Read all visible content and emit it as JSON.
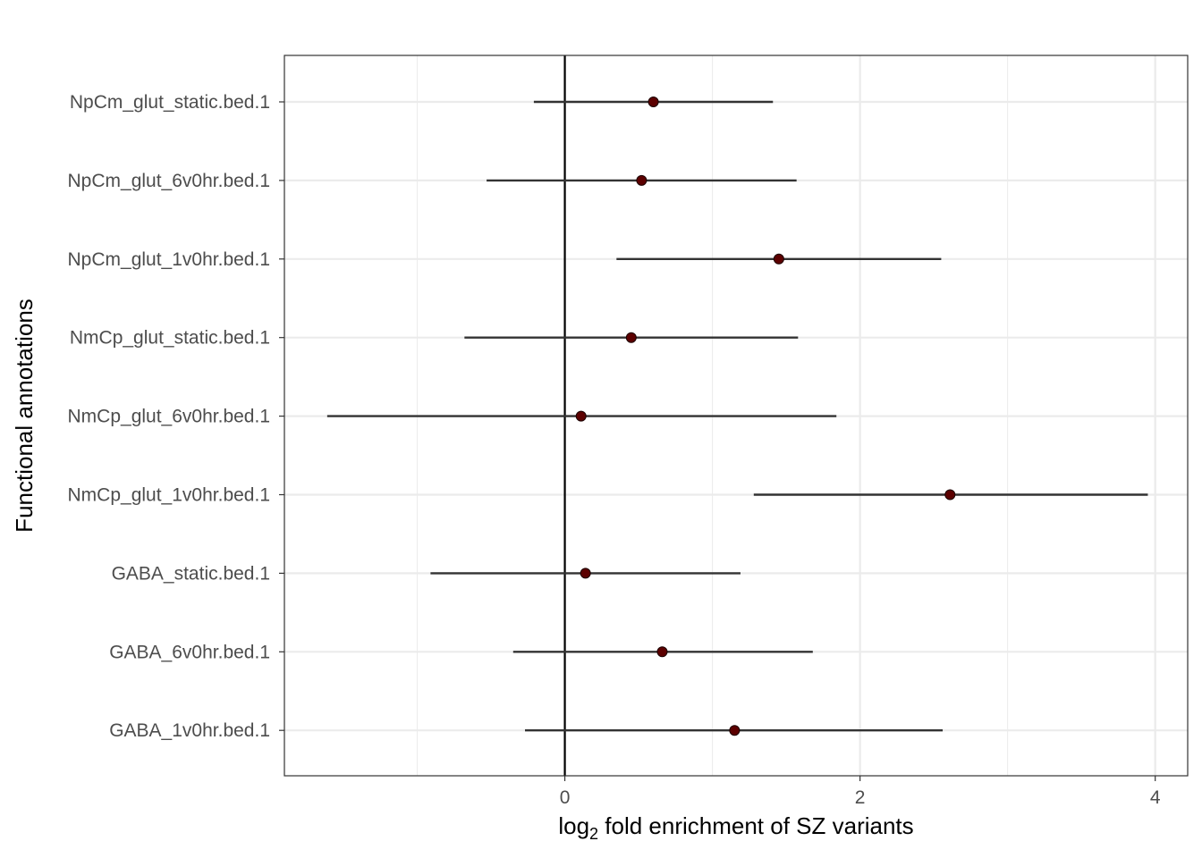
{
  "chart_data": {
    "type": "scatter",
    "orientation": "horizontal-forest",
    "xlabel_parts": {
      "prefix": "log",
      "subscript": "2",
      "rest": " fold enrichment of SZ variants"
    },
    "ylabel": "Functional annotations",
    "xlim": [
      -1.9,
      4.22
    ],
    "x_ticks": [
      0,
      2,
      4
    ],
    "x_tick_labels": [
      "0",
      "2",
      "4"
    ],
    "x_minor_ticks": [
      -1,
      1,
      3
    ],
    "reference_line_x": 0,
    "grid": true,
    "point_color": "#5c0000",
    "bar_color": "#333333",
    "categories": [
      "NpCm_glut_static.bed.1",
      "NpCm_glut_6v0hr.bed.1",
      "NpCm_glut_1v0hr.bed.1",
      "NmCp_glut_static.bed.1",
      "NmCp_glut_6v0hr.bed.1",
      "NmCp_glut_1v0hr.bed.1",
      "GABA_static.bed.1",
      "GABA_6v0hr.bed.1",
      "GABA_1v0hr.bed.1"
    ],
    "estimates": [
      0.6,
      0.52,
      1.45,
      0.45,
      0.11,
      2.61,
      0.14,
      0.66,
      1.15
    ],
    "lower": [
      -0.21,
      -0.53,
      0.35,
      -0.68,
      -1.61,
      1.28,
      -0.91,
      -0.35,
      -0.27
    ],
    "upper": [
      1.41,
      1.57,
      2.55,
      1.58,
      1.84,
      3.95,
      1.19,
      1.68,
      2.56
    ]
  }
}
